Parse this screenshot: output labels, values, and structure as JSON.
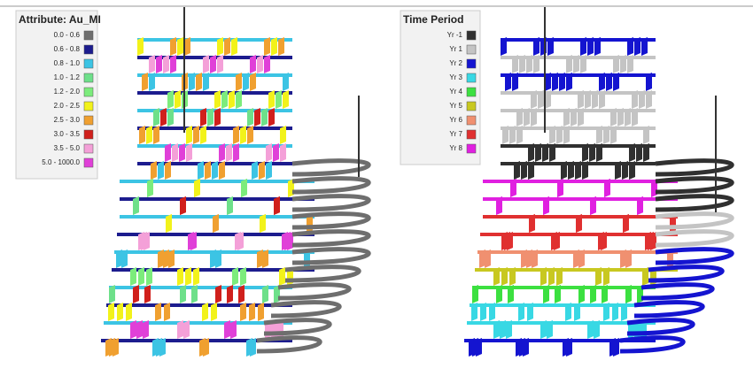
{
  "panels": [
    {
      "legend": {
        "title": "Attribute: Au_MI",
        "items": [
          {
            "label": "0.0 - 0.6",
            "color": "#6e6e6e"
          },
          {
            "label": "0.6 - 0.8",
            "color": "#1c1c8e"
          },
          {
            "label": "0.8 - 1.0",
            "color": "#3cc4e4"
          },
          {
            "label": "1.0 - 1.2",
            "color": "#6ee08a"
          },
          {
            "label": "1.2 - 2.0",
            "color": "#7cec7c"
          },
          {
            "label": "2.0 - 2.5",
            "color": "#f2f21a"
          },
          {
            "label": "2.5 - 3.0",
            "color": "#f0a030"
          },
          {
            "label": "3.0 - 3.5",
            "color": "#d0201c"
          },
          {
            "label": "3.5 - 5.0",
            "color": "#f4a0d8"
          },
          {
            "label": "5.0 - 1000.0",
            "color": "#e040d8"
          }
        ]
      }
    },
    {
      "legend": {
        "title": "Time Period",
        "items": [
          {
            "label": "Yr -1",
            "color": "#303030"
          },
          {
            "label": "Yr 1",
            "color": "#c4c4c4"
          },
          {
            "label": "Yr 2",
            "color": "#1414d0"
          },
          {
            "label": "Yr 3",
            "color": "#38d8e4"
          },
          {
            "label": "Yr 4",
            "color": "#3ce040"
          },
          {
            "label": "Yr 5",
            "color": "#c8c820"
          },
          {
            "label": "Yr 6",
            "color": "#f09070"
          },
          {
            "label": "Yr 7",
            "color": "#e03030"
          },
          {
            "label": "Yr 8",
            "color": "#e020e0"
          }
        ]
      }
    }
  ]
}
